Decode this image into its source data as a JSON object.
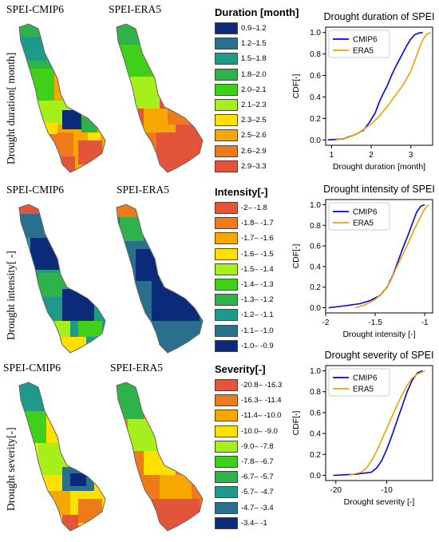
{
  "maps": {
    "col_titles": {
      "row1": [
        "SPEI-CMIP6",
        "SPEI-ERA5"
      ],
      "row2": [
        "SPEI-CMIP6",
        "SPEI-ERA5"
      ],
      "row3": [
        "SPEI-CMIP6",
        "SPEI-ERA5"
      ]
    },
    "row_labels": [
      "Drought duration[ month]",
      "Drought intensity[ -]",
      "Drought severity[-]"
    ]
  },
  "legends": [
    {
      "title": "Duration [month]",
      "items": [
        {
          "label": "0.9–1.2",
          "color": "#0b2a7a"
        },
        {
          "label": "1.2–1.5",
          "color": "#2a6f8c"
        },
        {
          "label": "1.5–1.8",
          "color": "#1f9a8a"
        },
        {
          "label": "1.8–2.0",
          "color": "#2fb24a"
        },
        {
          "label": "2.0–2.1",
          "color": "#40d01a"
        },
        {
          "label": "2.1–2.3",
          "color": "#a6ef1a"
        },
        {
          "label": "2.3–2.5",
          "color": "#ffe000"
        },
        {
          "label": "2.5–2.6",
          "color": "#f7a800"
        },
        {
          "label": "2.6–2.9",
          "color": "#ef7a1a"
        },
        {
          "label": "2.9–3.3",
          "color": "#e2553a"
        }
      ]
    },
    {
      "title": "Intensity[-]",
      "items": [
        {
          "label": "-2– -1.8",
          "color": "#e2553a"
        },
        {
          "label": "-1.8– -1.7",
          "color": "#ef7a1a"
        },
        {
          "label": "-1.7– -1.6",
          "color": "#f7a800"
        },
        {
          "label": "-1.6– -1.5",
          "color": "#ffe000"
        },
        {
          "label": "-1.5– -1.4",
          "color": "#a6ef1a"
        },
        {
          "label": "-1.4– -1.3",
          "color": "#40d01a"
        },
        {
          "label": "-1.3– -1.2",
          "color": "#2fb24a"
        },
        {
          "label": "-1.2– -1.1",
          "color": "#1f9a8a"
        },
        {
          "label": "-1.1– -1.0",
          "color": "#2a6f8c"
        },
        {
          "label": "-1.0– -0.9",
          "color": "#0b2a7a"
        }
      ]
    },
    {
      "title": "Severity[-]",
      "items": [
        {
          "label": "-20.8– -16.3",
          "color": "#e2553a"
        },
        {
          "label": "-16.3– -11.4",
          "color": "#ef7a1a"
        },
        {
          "label": "-11.4– -10.0",
          "color": "#f7a800"
        },
        {
          "label": "-10.0– -9.0",
          "color": "#ffe000"
        },
        {
          "label": "-9.0– -7.8",
          "color": "#a6ef1a"
        },
        {
          "label": "-7.8– -6.7",
          "color": "#40d01a"
        },
        {
          "label": "-6.7– -5.7",
          "color": "#2fb24a"
        },
        {
          "label": "-5.7– -4.7",
          "color": "#1f9a8a"
        },
        {
          "label": "-4.7– -3.4",
          "color": "#2a6f8c"
        },
        {
          "label": "-3.4– -1",
          "color": "#0b2a7a"
        }
      ]
    }
  ],
  "chart_data": [
    {
      "type": "line",
      "title": "Drought duration of SPEI",
      "xlabel": "Drought duration [month]",
      "ylabel": "CDF[-]",
      "xlim": [
        0.85,
        3.55
      ],
      "ylim": [
        -0.05,
        1.05
      ],
      "xticks": [
        1,
        2,
        3
      ],
      "yticks": [
        0.0,
        0.2,
        0.4,
        0.6,
        0.8,
        1.0
      ],
      "legend_position": "top-left",
      "series": [
        {
          "name": "CMIP6",
          "color": "#0000ee",
          "x": [
            0.9,
            1.3,
            1.6,
            1.8,
            1.95,
            2.1,
            2.2,
            2.3,
            2.4,
            2.5,
            2.6,
            2.7,
            2.8,
            2.9,
            3.0,
            3.1,
            3.2,
            3.3
          ],
          "y": [
            0.0,
            0.01,
            0.05,
            0.09,
            0.16,
            0.25,
            0.35,
            0.43,
            0.5,
            0.59,
            0.67,
            0.74,
            0.81,
            0.88,
            0.94,
            0.98,
            0.995,
            1.0
          ]
        },
        {
          "name": "ERA5",
          "color": "#f5a000",
          "x": [
            1.1,
            1.4,
            1.7,
            2.0,
            2.2,
            2.4,
            2.6,
            2.8,
            3.0,
            3.1,
            3.2,
            3.3,
            3.4,
            3.5
          ],
          "y": [
            0.0,
            0.02,
            0.07,
            0.15,
            0.22,
            0.31,
            0.41,
            0.51,
            0.64,
            0.74,
            0.84,
            0.93,
            0.985,
            1.0
          ]
        }
      ]
    },
    {
      "type": "line",
      "title": "Drought intensity of SPEI",
      "xlabel": "Drought intensity [-]",
      "ylabel": "CDF[-]",
      "xlim": [
        -2.0,
        -0.92
      ],
      "ylim": [
        -0.05,
        1.05
      ],
      "xticks": [
        -2.0,
        -1.5,
        -1.0
      ],
      "yticks": [
        0.0,
        0.2,
        0.4,
        0.6,
        0.8,
        1.0
      ],
      "legend_position": "top-left",
      "series": [
        {
          "name": "CMIP6",
          "color": "#0000ee",
          "x": [
            -1.97,
            -1.8,
            -1.65,
            -1.55,
            -1.45,
            -1.38,
            -1.32,
            -1.27,
            -1.22,
            -1.17,
            -1.12,
            -1.08,
            -1.04,
            -1.0
          ],
          "y": [
            0.0,
            0.02,
            0.04,
            0.07,
            0.12,
            0.2,
            0.32,
            0.45,
            0.58,
            0.7,
            0.83,
            0.93,
            0.985,
            1.0
          ]
        },
        {
          "name": "ERA5",
          "color": "#f5a000",
          "x": [
            -1.7,
            -1.6,
            -1.5,
            -1.42,
            -1.35,
            -1.29,
            -1.23,
            -1.17,
            -1.11,
            -1.05,
            -1.0,
            -0.96
          ],
          "y": [
            0.0,
            0.03,
            0.08,
            0.15,
            0.25,
            0.38,
            0.5,
            0.62,
            0.75,
            0.87,
            0.96,
            1.0
          ]
        }
      ]
    },
    {
      "type": "line",
      "title": "Drought severity of SPEI",
      "xlabel": "Drought severity [-]",
      "ylabel": "CDF[-]",
      "xlim": [
        -22,
        -1
      ],
      "ylim": [
        -0.05,
        1.05
      ],
      "xticks": [
        -20,
        -10
      ],
      "yticks": [
        0.0,
        0.2,
        0.4,
        0.6,
        0.8,
        1.0
      ],
      "legend_position": "top-left",
      "series": [
        {
          "name": "CMIP6",
          "color": "#0000ee",
          "x": [
            -20.5,
            -16,
            -13,
            -12,
            -11,
            -10,
            -9,
            -8,
            -7,
            -6,
            -5,
            -4,
            -3
          ],
          "y": [
            0.0,
            0.01,
            0.03,
            0.07,
            0.14,
            0.25,
            0.38,
            0.52,
            0.66,
            0.8,
            0.91,
            0.98,
            1.0
          ]
        },
        {
          "name": "ERA5",
          "color": "#f5a000",
          "x": [
            -17.5,
            -15,
            -14,
            -13,
            -12,
            -11,
            -10,
            -9,
            -8,
            -7,
            -6,
            -5,
            -4,
            -3,
            -2.5
          ],
          "y": [
            0.0,
            0.03,
            0.07,
            0.14,
            0.23,
            0.34,
            0.45,
            0.56,
            0.67,
            0.77,
            0.86,
            0.93,
            0.97,
            0.99,
            1.0
          ]
        }
      ]
    }
  ]
}
